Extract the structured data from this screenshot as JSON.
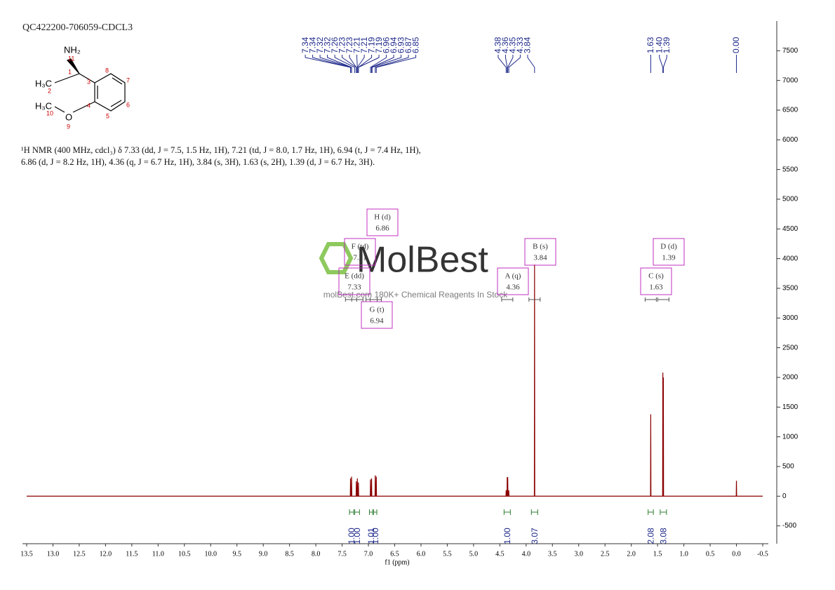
{
  "chart_data": {
    "type": "line",
    "title": "QC422200-706059-CDCL3",
    "xlabel": "f1 (ppm)",
    "xlim": [
      13.5,
      -0.5
    ],
    "xticks": [
      13.5,
      {
        "value": 13,
        "label": "13.0"
      },
      12.5,
      {
        "value": 12,
        "label": "12.0"
      },
      11.5,
      {
        "value": 11,
        "label": "11.0"
      },
      10.5,
      {
        "value": 10,
        "label": "10.0"
      },
      9.5,
      {
        "value": 9,
        "label": "9.0"
      },
      8.5,
      {
        "value": 8,
        "label": "8.0"
      },
      7.5,
      {
        "value": 7,
        "label": "7.0"
      },
      6.5,
      {
        "value": 6,
        "label": "6.0"
      },
      5.5,
      {
        "value": 5,
        "label": "5.0"
      },
      4.5,
      {
        "value": 4,
        "label": "4.0"
      },
      3.5,
      {
        "value": 3,
        "label": "3.0"
      },
      2.5,
      {
        "value": 2,
        "label": "2.0"
      },
      1.5,
      {
        "value": 1,
        "label": "1.0"
      },
      0.5,
      {
        "value": 0,
        "label": "0.0"
      },
      -0.5
    ],
    "ylim": [
      -800,
      8000
    ],
    "yticks": [
      -500,
      0,
      500,
      1000,
      1500,
      2000,
      2500,
      3000,
      3500,
      4000,
      4500,
      5000,
      5500,
      6000,
      6500,
      7000,
      7500
    ],
    "color": "#8b0000",
    "x": [
      13.5,
      7.344,
      7.34,
      7.336,
      7.324,
      7.32,
      7.316,
      7.234,
      7.23,
      7.226,
      7.214,
      7.21,
      7.206,
      7.194,
      7.19,
      7.186,
      6.964,
      6.96,
      6.956,
      6.944,
      6.94,
      6.936,
      6.874,
      6.87,
      6.866,
      6.854,
      6.85,
      6.846,
      4.384,
      4.38,
      4.376,
      4.364,
      4.36,
      4.356,
      4.354,
      4.35,
      4.346,
      4.334,
      4.33,
      4.326,
      3.844,
      3.84,
      3.836,
      1.634,
      1.63,
      1.626,
      1.404,
      1.4,
      1.396,
      1.394,
      1.39,
      1.386,
      0.004,
      0,
      -0.004,
      -0.5
    ],
    "values": [
      0,
      0,
      300,
      0,
      0,
      330,
      0,
      0,
      250,
      0,
      0,
      300,
      0,
      0,
      230,
      0,
      0,
      280,
      0,
      0,
      300,
      0,
      0,
      350,
      0,
      0,
      330,
      0,
      0,
      100,
      0,
      0,
      320,
      0,
      0,
      320,
      0,
      0,
      100,
      0,
      0,
      3900,
      0,
      0,
      1380,
      0,
      0,
      2080,
      0,
      0,
      2000,
      0,
      0,
      260,
      0,
      0
    ],
    "peak_labels": [
      7.34,
      7.34,
      7.32,
      7.32,
      7.26,
      7.23,
      7.23,
      7.21,
      7.21,
      7.19,
      7.19,
      6.96,
      6.94,
      6.93,
      6.87,
      6.85,
      4.38,
      4.36,
      4.35,
      4.33,
      3.84,
      1.63,
      {
        "value": 1.4,
        "label": "1.40"
      },
      1.39,
      {
        "value": 0,
        "label": "0.00"
      }
    ],
    "integrals": [
      {
        "from": 7.36,
        "to": 7.28,
        "value": {
          "value": 1,
          "label": "1.00"
        }
      },
      {
        "from": 7.26,
        "to": 7.17,
        "value": {
          "value": 1,
          "label": "1.00"
        }
      },
      {
        "from": 6.98,
        "to": 6.92,
        "value": {
          "value": 1.01,
          "label": "1.01"
        }
      },
      {
        "from": 6.9,
        "to": 6.84,
        "value": {
          "value": 1,
          "label": "1.00"
        }
      },
      {
        "from": 4.42,
        "to": 4.3,
        "value": {
          "value": 1,
          "label": "1.00"
        }
      },
      {
        "from": 3.9,
        "to": 3.78,
        "value": 3.07
      },
      {
        "from": 1.68,
        "to": 1.58,
        "value": 2.08
      },
      {
        "from": 1.45,
        "to": 1.33,
        "value": 3.08
      }
    ],
    "multiplets": [
      {
        "label": "H (d)",
        "shift": 6.86
      },
      {
        "label": "F (td)",
        "shift": 7.21
      },
      {
        "label": "E (dd)",
        "shift": 7.33
      },
      {
        "label": "G (t)",
        "shift": 6.94
      },
      {
        "label": "A (q)",
        "shift": 4.36
      },
      {
        "label": "B (s)",
        "shift": 3.84
      },
      {
        "label": "C (s)",
        "shift": 1.63
      },
      {
        "label": "D (d)",
        "shift": 1.39
      }
    ]
  },
  "structure": {
    "labels": [
      "NH₂",
      "11",
      "1",
      "H₃C",
      "2",
      "3",
      "8",
      "7",
      "6",
      "5",
      "4",
      "H₃C",
      "10",
      "O",
      "9"
    ]
  },
  "description": "¹H NMR (400 MHz, cdcl₃) δ 7.33 (dd, J = 7.5, 1.5 Hz, 1H), 7.21 (td, J = 8.0, 1.7 Hz, 1H), 6.94 (t, J = 7.4 Hz, 1H), 6.86 (d, J = 8.2 Hz, 1H), 4.36 (q, J = 6.7 Hz, 1H), 3.84 (s, 3H), 1.63 (s, 2H), 1.39 (d, J = 6.7 Hz, 3H).",
  "watermark": {
    "brand": "MolBest",
    "tagline": "molBest.com 180K+ Chemical Reagents In Stock"
  }
}
